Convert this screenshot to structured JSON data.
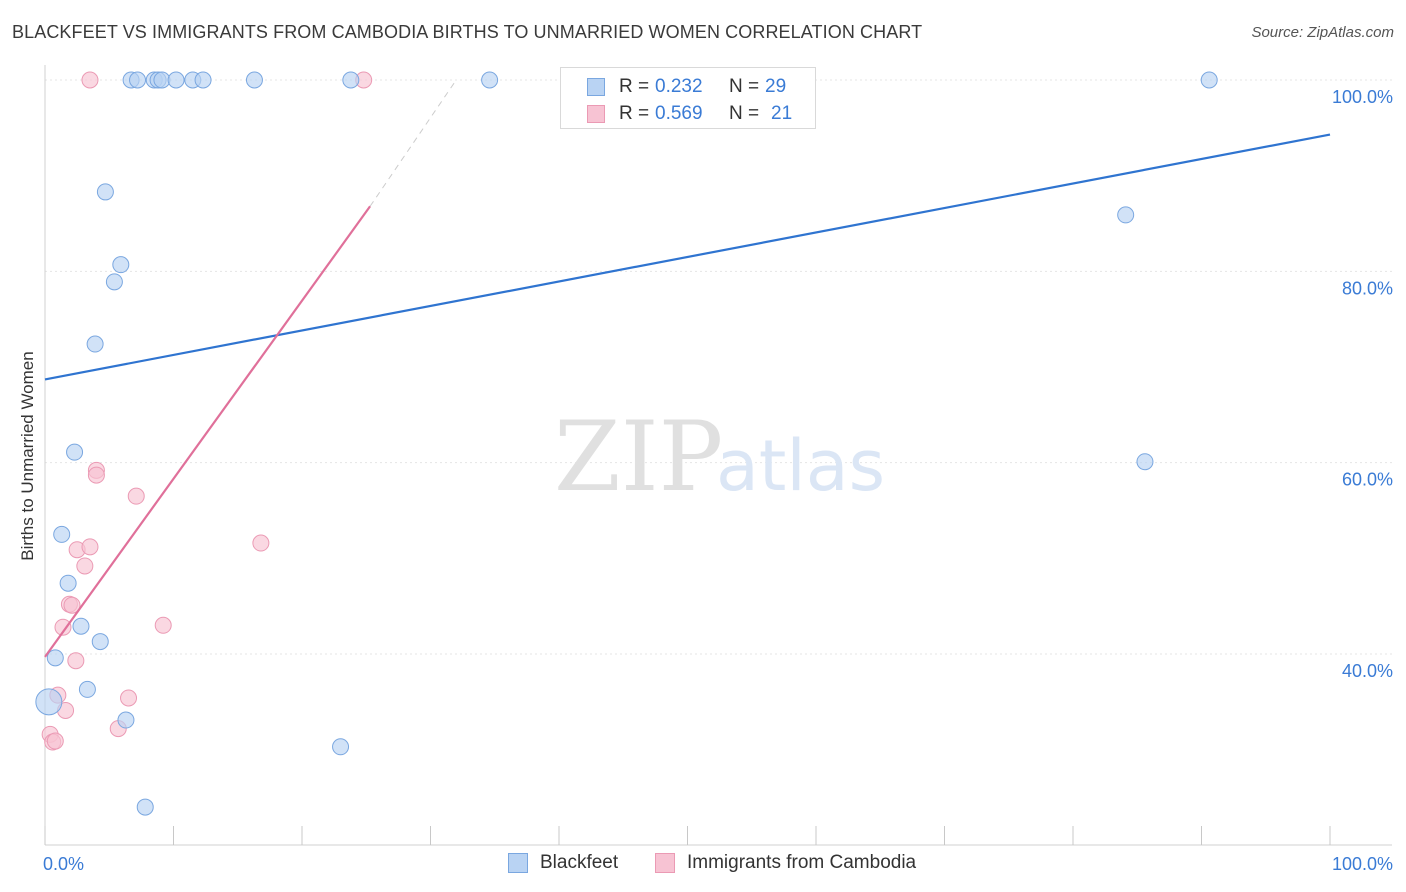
{
  "header": {
    "title": "BLACKFEET VS IMMIGRANTS FROM CAMBODIA BIRTHS TO UNMARRIED WOMEN CORRELATION CHART",
    "source": "Source: ZipAtlas.com"
  },
  "watermark": {
    "zip": "ZIP",
    "atlas": "atlas"
  },
  "colors": {
    "blue_fill": "#b9d3f3",
    "blue_stroke": "#7aa7e0",
    "blue_line": "#2f74d0",
    "pink_fill": "#f7c3d3",
    "pink_stroke": "#eb9ab4",
    "pink_line": "#e0709a",
    "axis_text": "#3a7bd5",
    "grid": "#e5e5e5"
  },
  "legend": {
    "r_label": "R =",
    "n_label": "N =",
    "series": [
      {
        "r": "0.232",
        "n": "29"
      },
      {
        "r": "0.569",
        "n": "21"
      }
    ]
  },
  "chart_data": {
    "type": "scatter",
    "title": "BLACKFEET VS IMMIGRANTS FROM CAMBODIA BIRTHS TO UNMARRIED WOMEN CORRELATION CHART",
    "xlabel": "",
    "ylabel": "Births to Unmarried Women",
    "xlim": [
      0,
      100
    ],
    "ylim": [
      19,
      102
    ],
    "x_tick_labels": [
      "0.0%",
      "100.0%"
    ],
    "y_ticks": [
      {
        "value": 40,
        "label": "40.0%"
      },
      {
        "value": 60,
        "label": "60.0%"
      },
      {
        "value": 80,
        "label": "80.0%"
      },
      {
        "value": 100,
        "label": "100.0%"
      }
    ],
    "grid": true,
    "legend_position": "bottom",
    "series": [
      {
        "name": "Blackfeet",
        "points": [
          [
            6.7,
            100
          ],
          [
            7.2,
            100
          ],
          [
            8.5,
            100
          ],
          [
            8.8,
            100
          ],
          [
            9.1,
            100
          ],
          [
            10.2,
            100
          ],
          [
            11.5,
            100
          ],
          [
            12.3,
            100
          ],
          [
            16.3,
            100
          ],
          [
            23.8,
            100
          ],
          [
            34.6,
            100
          ],
          [
            90.6,
            100
          ],
          [
            4.7,
            88.3
          ],
          [
            5.9,
            80.7
          ],
          [
            5.4,
            78.9
          ],
          [
            3.9,
            72.4
          ],
          [
            84.1,
            85.9
          ],
          [
            2.3,
            61.1
          ],
          [
            85.6,
            60.1
          ],
          [
            1.3,
            52.5
          ],
          [
            1.8,
            47.4
          ],
          [
            2.8,
            42.9
          ],
          [
            4.3,
            41.3
          ],
          [
            0.8,
            39.6
          ],
          [
            3.3,
            36.3
          ],
          [
            6.3,
            33.1
          ],
          [
            0.3,
            35.0
          ],
          [
            23.0,
            30.3
          ],
          [
            7.8,
            24.0
          ]
        ],
        "trend": {
          "x": [
            0,
            100
          ],
          "y": [
            68.7,
            94.3
          ]
        }
      },
      {
        "name": "Immigrants from Cambodia",
        "points": [
          [
            3.5,
            100
          ],
          [
            24.8,
            100
          ],
          [
            4.0,
            59.2
          ],
          [
            4.0,
            58.7
          ],
          [
            7.1,
            56.5
          ],
          [
            16.8,
            51.6
          ],
          [
            2.5,
            50.9
          ],
          [
            3.5,
            51.2
          ],
          [
            3.1,
            49.2
          ],
          [
            1.9,
            45.2
          ],
          [
            2.1,
            45.1
          ],
          [
            1.4,
            42.8
          ],
          [
            9.2,
            43.0
          ],
          [
            2.4,
            39.3
          ],
          [
            1.0,
            35.7
          ],
          [
            6.5,
            35.4
          ],
          [
            1.6,
            34.1
          ],
          [
            5.7,
            32.2
          ],
          [
            0.4,
            31.6
          ],
          [
            0.6,
            30.8
          ],
          [
            0.8,
            30.9
          ]
        ],
        "trend": {
          "x": [
            0,
            25.3
          ],
          "y": [
            39.7,
            86.8
          ]
        },
        "trend_dashed": {
          "x": [
            25.3,
            32.0
          ],
          "y": [
            86.8,
            100
          ]
        }
      }
    ]
  }
}
